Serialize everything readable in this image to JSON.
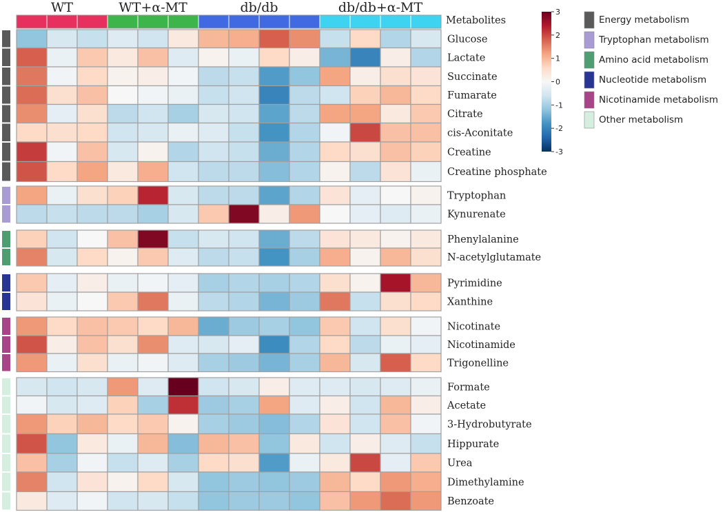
{
  "chart_data": {
    "type": "heatmap",
    "title": "",
    "header_label": "Metabolites",
    "groups": [
      {
        "name": "WT",
        "color": "#e8305e",
        "n": 3
      },
      {
        "name": "WT+α-MT",
        "color": "#3db54a",
        "n": 3
      },
      {
        "name": "db/db",
        "color": "#4169e1",
        "n": 4
      },
      {
        "name": "db/db+α-MT",
        "color": "#3fd3f2",
        "n": 4
      }
    ],
    "color_scale": {
      "min": -3,
      "max": 3,
      "ticks": [
        3,
        2,
        1,
        0,
        -1,
        -2,
        -3
      ],
      "colors": [
        "#053061",
        "#2166ac",
        "#4393c3",
        "#92c5de",
        "#d1e5f0",
        "#f7f7f7",
        "#fddbc7",
        "#f4a582",
        "#d6604d",
        "#b2182b",
        "#67001f"
      ]
    },
    "categories": [
      {
        "name": "Energy metabolism",
        "color": "#5a5a5a"
      },
      {
        "name": "Tryptophan metabolism",
        "color": "#a99bd3"
      },
      {
        "name": "Amino acid metabolism",
        "color": "#4f9e72"
      },
      {
        "name": "Nucleotide metabolism",
        "color": "#283593"
      },
      {
        "name": "Nicotinamide metabolism",
        "color": "#a84589"
      },
      {
        "name": "Other metabolism",
        "color": "#d4eee0"
      }
    ],
    "blocks": [
      {
        "category": 0,
        "rows": [
          {
            "name": "Glucose",
            "values": [
              -1.2,
              -0.5,
              -0.7,
              -0.4,
              -0.6,
              0.3,
              1.0,
              1.1,
              1.8,
              1.4,
              -0.7,
              0.6,
              -0.9,
              -0.5
            ]
          },
          {
            "name": "Lactate",
            "values": [
              1.8,
              -0.2,
              0.8,
              0.3,
              0.9,
              -0.4,
              0.1,
              -0.2,
              0.6,
              0.2,
              -1.4,
              -2.0,
              0.2,
              -0.9
            ]
          },
          {
            "name": "Succinate",
            "values": [
              1.6,
              -0.1,
              0.6,
              0.1,
              0.2,
              -0.1,
              -0.8,
              -0.7,
              -1.7,
              -1.2,
              1.2,
              0.2,
              0.5,
              0.4
            ]
          },
          {
            "name": "Fumarate",
            "values": [
              1.7,
              0.5,
              0.9,
              0.0,
              -0.1,
              -0.2,
              -0.7,
              -0.6,
              -2.0,
              -0.8,
              -0.6,
              0.7,
              1.0,
              0.6
            ]
          },
          {
            "name": "Citrate",
            "values": [
              1.4,
              -0.3,
              0.5,
              -0.8,
              -0.6,
              -1.0,
              -0.5,
              -0.6,
              -1.6,
              -0.8,
              1.2,
              1.2,
              0.3,
              0.8
            ]
          },
          {
            "name": "cis-Aconitate",
            "values": [
              0.6,
              0.5,
              0.6,
              -0.6,
              -0.5,
              -0.2,
              -0.4,
              -0.7,
              -1.8,
              -0.9,
              -0.1,
              2.0,
              0.9,
              0.9
            ]
          },
          {
            "name": "Creatine",
            "values": [
              2.1,
              -0.1,
              0.9,
              -0.5,
              0.1,
              -0.9,
              -0.6,
              -0.7,
              -1.5,
              -0.9,
              0.6,
              0.5,
              0.9,
              0.7
            ]
          },
          {
            "name": "Creatine phosphate",
            "values": [
              1.9,
              0.6,
              1.2,
              0.3,
              1.1,
              -0.6,
              -0.8,
              -0.8,
              -1.3,
              -0.9,
              0.1,
              -0.8,
              0.4,
              -0.2
            ]
          }
        ]
      },
      {
        "category": 1,
        "rows": [
          {
            "name": "Tryptophan",
            "values": [
              1.2,
              -0.2,
              0.5,
              0.7,
              2.3,
              -0.5,
              -0.8,
              -0.8,
              -1.6,
              -0.9,
              0.4,
              -0.3,
              0.0,
              0.1
            ]
          },
          {
            "name": "Kynurenate",
            "values": [
              -0.8,
              -0.7,
              -0.8,
              -0.8,
              -1.0,
              -0.5,
              0.8,
              2.8,
              0.2,
              1.3,
              0.0,
              -0.3,
              -0.4,
              -0.2
            ]
          }
        ]
      },
      {
        "category": 2,
        "rows": [
          {
            "name": "Phenylalanine",
            "values": [
              0.7,
              -0.6,
              0.0,
              0.9,
              2.8,
              -0.7,
              -0.5,
              -0.6,
              -1.5,
              -0.8,
              0.4,
              0.3,
              0.1,
              0.3
            ]
          },
          {
            "name": "N-acetylglutamate",
            "values": [
              1.5,
              -0.5,
              0.6,
              0.1,
              0.8,
              -0.4,
              -0.8,
              -0.7,
              -1.8,
              -1.0,
              1.1,
              0.1,
              1.0,
              0.5
            ]
          }
        ]
      },
      {
        "category": 3,
        "rows": [
          {
            "name": "Pyrimidine",
            "values": [
              0.8,
              -0.3,
              0.2,
              -0.2,
              -0.1,
              -0.3,
              -1.0,
              -0.9,
              -1.0,
              -0.9,
              0.5,
              0.1,
              2.5,
              1.0
            ]
          },
          {
            "name": "Xanthine",
            "values": [
              0.4,
              -0.2,
              0.0,
              0.8,
              1.6,
              -0.2,
              -0.8,
              -0.9,
              -1.4,
              -1.1,
              1.6,
              -0.7,
              0.5,
              0.6
            ]
          }
        ]
      },
      {
        "category": 4,
        "rows": [
          {
            "name": "Nicotinate",
            "values": [
              1.3,
              0.6,
              0.9,
              0.8,
              0.6,
              1.0,
              -1.5,
              -1.1,
              -1.0,
              -1.2,
              0.8,
              -0.6,
              0.5,
              -0.1
            ]
          },
          {
            "name": "Nicotinamide",
            "values": [
              1.9,
              0.2,
              0.9,
              0.5,
              1.4,
              -0.4,
              -0.5,
              -0.3,
              -1.9,
              -0.9,
              0.6,
              -0.8,
              -0.2,
              -0.3
            ]
          },
          {
            "name": "Trigonelline",
            "values": [
              1.3,
              -0.2,
              0.5,
              -0.2,
              -0.1,
              -0.4,
              -1.0,
              -1.1,
              -1.4,
              -1.0,
              1.0,
              -0.5,
              1.8,
              0.6
            ]
          }
        ]
      },
      {
        "category": 5,
        "rows": [
          {
            "name": "Formate",
            "values": [
              -0.5,
              -0.6,
              -0.5,
              1.3,
              -0.4,
              3.0,
              -0.6,
              -0.5,
              0.2,
              -0.4,
              -0.4,
              -0.5,
              -0.4,
              -0.2
            ]
          },
          {
            "name": "Acetate",
            "values": [
              -0.1,
              -0.5,
              -0.4,
              0.7,
              -1.0,
              2.2,
              -1.1,
              -1.0,
              1.2,
              -0.4,
              0.2,
              -0.6,
              1.0,
              0.2
            ]
          },
          {
            "name": "3-Hydrobutyrate",
            "values": [
              1.3,
              0.7,
              1.0,
              0.6,
              0.8,
              0.1,
              -1.0,
              -1.1,
              -1.3,
              -0.9,
              0.4,
              -0.6,
              0.9,
              -0.1
            ]
          },
          {
            "name": "Hippurate",
            "values": [
              1.9,
              -1.2,
              0.3,
              -0.2,
              1.0,
              -1.3,
              1.0,
              0.9,
              -1.2,
              0.3,
              -0.6,
              0.2,
              -0.4,
              -0.7
            ]
          },
          {
            "name": "Urea",
            "values": [
              0.9,
              -1.0,
              -0.1,
              -0.7,
              -0.4,
              -1.0,
              0.6,
              0.5,
              -1.7,
              -0.2,
              0.3,
              2.0,
              -0.3,
              0.8
            ]
          },
          {
            "name": "Dimethylamine",
            "values": [
              1.5,
              -0.6,
              0.4,
              0.1,
              0.6,
              -0.5,
              -1.2,
              -1.1,
              -1.2,
              -1.1,
              1.0,
              0.6,
              1.3,
              1.1
            ]
          },
          {
            "name": "Benzoate",
            "values": [
              0.3,
              -0.4,
              -0.1,
              -0.6,
              -0.5,
              -0.7,
              -1.2,
              -1.1,
              -1.1,
              -1.2,
              0.9,
              1.3,
              1.7,
              1.3
            ]
          }
        ]
      }
    ]
  }
}
